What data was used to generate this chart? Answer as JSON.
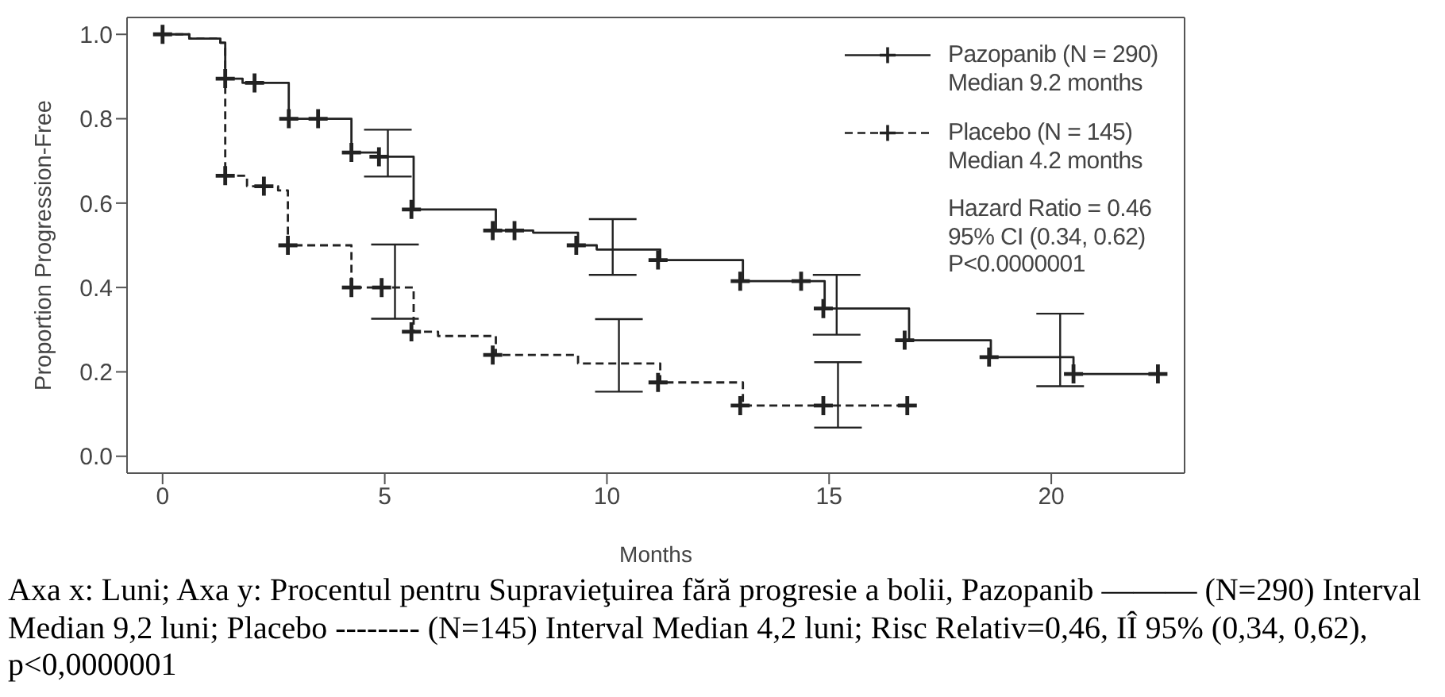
{
  "chart_data": {
    "type": "step",
    "xlabel": "Months",
    "ylabel": "Proportion Progression-Free",
    "xlim": [
      -0.8,
      23
    ],
    "xticks": [
      0,
      5,
      10,
      15,
      20
    ],
    "ylim": [
      -0.04,
      1.04
    ],
    "yticks": [
      {
        "value": 0,
        "label": "0.0"
      },
      0.2,
      0.4,
      0.6,
      0.8,
      {
        "value": 1,
        "label": "1.0"
      }
    ],
    "legend": "top right",
    "marker": "cross",
    "annotations": [
      "Hazard Ratio = 0.46\n95% CI (0.34, 0.62)\nP<0.0000001",
      "Axa x: Luni; Axa y: Procentul pentru Supravieţuirea fără progresie a bolii, Pazopanib ——— (N=290) Interval Median 9,2 luni; Placebo -------- (N=145) Interval Median 4,2 luni; Risc Relativ=0,46, IÎ 95% (0,34, 0,62), p<0,0000001"
    ],
    "series": [
      {
        "name": "Pazopanib (N = 290)\nMedian 9.2 months",
        "color": "#222222",
        "line_style": "solid",
        "marker": "none",
        "x": [
          0,
          0.6,
          1.3,
          1.41,
          1.8,
          2.84,
          4.25,
          4.87,
          5.07,
          5.65,
          7.5,
          8.34,
          9.35,
          9.77,
          10.13,
          11.2,
          13.06,
          14.9,
          15.17,
          16.8,
          18.64,
          20.2,
          20.5,
          22.4
        ],
        "values": [
          1.0,
          0.99,
          0.98,
          0.895,
          0.885,
          0.8,
          0.72,
          0.71,
          0.71,
          0.585,
          0.535,
          0.53,
          0.5,
          0.49,
          0.49,
          0.465,
          0.415,
          0.35,
          0.35,
          0.275,
          0.235,
          0.235,
          0.195,
          0.195
        ],
        "errors": [
          null,
          null,
          null,
          null,
          null,
          null,
          null,
          null,
          [
            0.663,
            0.774
          ],
          null,
          null,
          null,
          null,
          null,
          [
            0.43,
            0.562
          ],
          null,
          null,
          null,
          [
            0.288,
            0.43
          ],
          null,
          null,
          [
            0.166,
            0.338
          ],
          null,
          null
        ]
      },
      {
        "name": "Placebo (N = 145)\nMedian 4.2 months",
        "color": "#222222",
        "line_style": "dashed",
        "marker": "none",
        "x": [
          0,
          0.6,
          1.3,
          1.41,
          1.9,
          2.6,
          2.82,
          4.25,
          5.23,
          5.65,
          6.2,
          7.5,
          9.35,
          10.27,
          11.2,
          13.06,
          15.2,
          16.76
        ],
        "values": [
          1.0,
          0.99,
          0.98,
          0.665,
          0.64,
          0.63,
          0.5,
          0.4,
          0.4,
          0.295,
          0.285,
          0.24,
          0.22,
          0.22,
          0.175,
          0.12,
          0.12,
          0.12
        ],
        "errors": [
          null,
          null,
          null,
          null,
          null,
          null,
          null,
          null,
          [
            0.326,
            0.502
          ],
          null,
          null,
          null,
          null,
          [
            0.153,
            0.325
          ],
          null,
          null,
          [
            0.068,
            0.223
          ],
          null
        ]
      },
      {
        "type": "scatter",
        "color": "#222222",
        "x": [
          0,
          1.41,
          2.07,
          2.84,
          3.5,
          4.25,
          4.87,
          5.6,
          7.43,
          7.92,
          9.31,
          11.15,
          13.0,
          14.37,
          14.87,
          16.7,
          18.6,
          20.5,
          22.4
        ],
        "values": [
          1.0,
          0.895,
          0.885,
          0.8,
          0.8,
          0.72,
          0.71,
          0.585,
          0.535,
          0.535,
          0.5,
          0.465,
          0.415,
          0.415,
          0.35,
          0.275,
          0.235,
          0.195,
          0.195
        ]
      },
      {
        "type": "scatter",
        "color": "#222222",
        "x": [
          1.41,
          2.28,
          2.82,
          4.25,
          4.93,
          5.6,
          7.43,
          11.15,
          13.0,
          14.87,
          16.76
        ],
        "values": [
          0.665,
          0.64,
          0.5,
          0.4,
          0.4,
          0.295,
          0.24,
          0.175,
          0.12,
          0.12,
          0.12
        ]
      }
    ]
  }
}
